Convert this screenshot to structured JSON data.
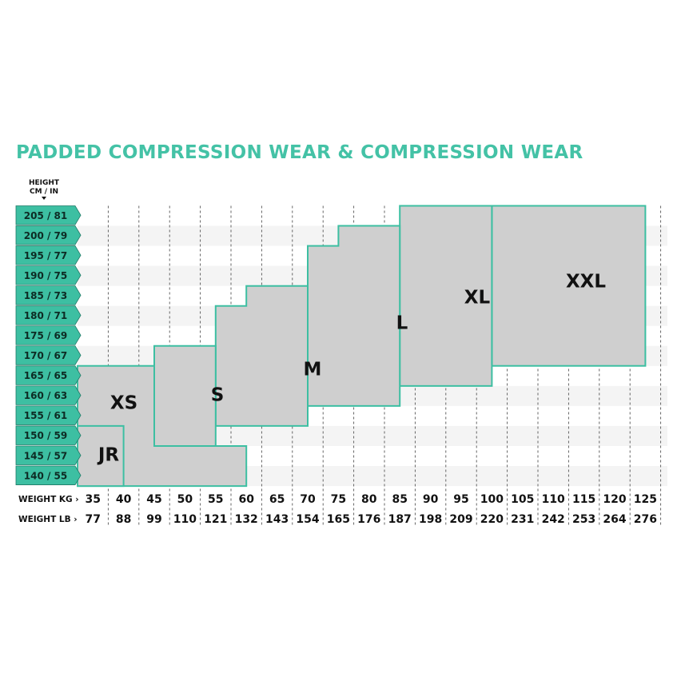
{
  "colors": {
    "accent": "#3dbfa2",
    "title": "#44c2a6",
    "box_fill": "#cfcfcf",
    "row_stripe": "#f4f4f4"
  },
  "header": {
    "title": "PADDED COMPRESSION WEAR & COMPRESSION WEAR",
    "height_label_line1": "HEIGHT",
    "height_label_line2": "CM / IN"
  },
  "chart_data": {
    "type": "table",
    "heights": [
      "205 / 81",
      "200 / 79",
      "195 / 77",
      "190 / 75",
      "185 / 73",
      "180 / 71",
      "175 / 69",
      "170 / 67",
      "165 / 65",
      "160 / 63",
      "155 / 61",
      "150 / 59",
      "145 / 57",
      "140 / 55"
    ],
    "height_cm": [
      205,
      200,
      195,
      190,
      185,
      180,
      175,
      170,
      165,
      160,
      155,
      150,
      145,
      140
    ],
    "weight_kg_label": "WEIGHT KG",
    "weight_lb_label": "WEIGHT LB",
    "weights_kg": [
      "35",
      "40",
      "45",
      "50",
      "55",
      "60",
      "65",
      "70",
      "75",
      "80",
      "85",
      "90",
      "95",
      "100",
      "105",
      "110",
      "115",
      "120",
      "125"
    ],
    "weights_lb": [
      "77",
      "88",
      "99",
      "110",
      "121",
      "132",
      "143",
      "154",
      "165",
      "176",
      "187",
      "198",
      "209",
      "220",
      "231",
      "242",
      "253",
      "264",
      "276"
    ],
    "sizes": [
      {
        "label": "XXL",
        "kg_min": 100,
        "kg_max": 125,
        "cm_min": 167.5,
        "cm_max": 207.5
      },
      {
        "label": "XL",
        "kg_min": 85,
        "kg_max": 100,
        "cm_min": 162.5,
        "cm_max": 207.5
      },
      {
        "label": "L",
        "kg_min": 70,
        "kg_max": 85,
        "cm_min": 157.5,
        "cm_max": 197.5,
        "step": {
          "kg": 75,
          "cm": 202.5
        }
      },
      {
        "label": "M",
        "kg_min": 55,
        "kg_max": 70,
        "cm_min": 152.5,
        "cm_max": 182.5,
        "step": {
          "kg": 60,
          "cm": 187.5
        }
      },
      {
        "label": "S",
        "kg_min": 45,
        "kg_max": 55,
        "cm_min": 147.5,
        "cm_max": 172.5
      },
      {
        "label": "XS",
        "kg_min": 30,
        "kg_max": 45,
        "cm_min": 137.5,
        "cm_max": 167.5,
        "notch": {
          "kg_max": 60,
          "cm_max": 147.5
        }
      },
      {
        "label": "JR",
        "kg_min": 30,
        "kg_max": 40,
        "cm_min": 137.5,
        "cm_max": 152.5
      }
    ]
  }
}
